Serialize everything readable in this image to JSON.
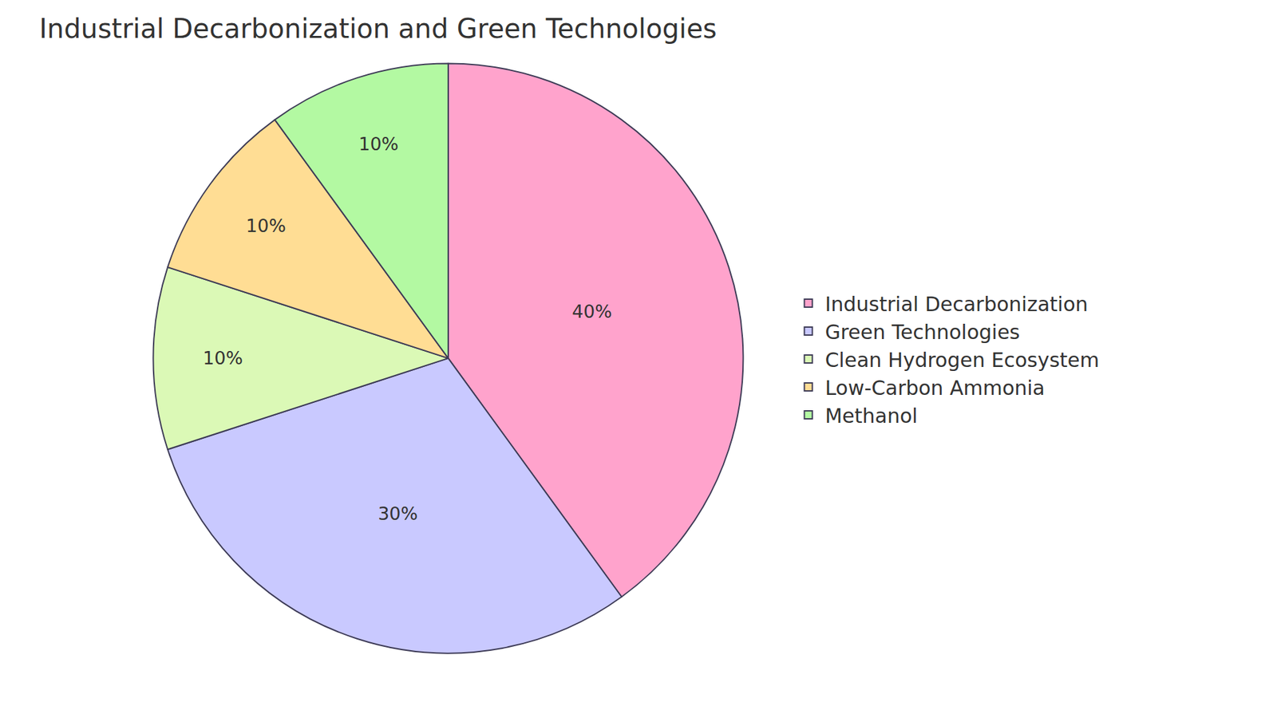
{
  "chart_data": {
    "type": "pie",
    "title": "Industrial Decarbonization and Green Technologies",
    "categories": [
      "Industrial Decarbonization",
      "Green Technologies",
      "Clean Hydrogen Ecosystem",
      "Low-Carbon Ammonia",
      "Methanol"
    ],
    "values": [
      40,
      30,
      10,
      10,
      10
    ],
    "value_labels": [
      "40%",
      "30%",
      "10%",
      "10%",
      "10%"
    ],
    "colors": [
      "#ffa3cc",
      "#c9c9ff",
      "#dbf9b6",
      "#ffdd94",
      "#b3f9a2"
    ],
    "data_labels": true,
    "legend": "right"
  }
}
